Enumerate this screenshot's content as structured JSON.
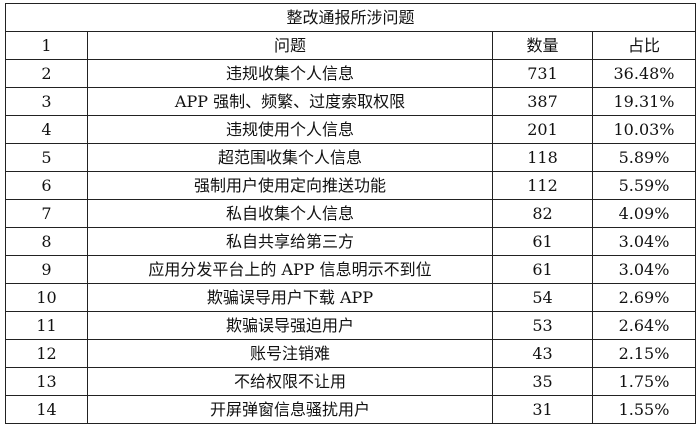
{
  "table": {
    "title": "整改通报所涉问题",
    "header": [
      "1",
      "问题",
      "数量",
      "占比"
    ],
    "rows": [
      [
        "2",
        "违规收集个人信息",
        "731",
        "36.48%"
      ],
      [
        "3",
        "APP 强制、频繁、过度索取权限",
        "387",
        "19.31%"
      ],
      [
        "4",
        "违规使用个人信息",
        "201",
        "10.03%"
      ],
      [
        "5",
        "超范围收集个人信息",
        "118",
        "5.89%"
      ],
      [
        "6",
        "强制用户使用定向推送功能",
        "112",
        "5.59%"
      ],
      [
        "7",
        "私自收集个人信息",
        "82",
        "4.09%"
      ],
      [
        "8",
        "私自共享给第三方",
        "61",
        "3.04%"
      ],
      [
        "9",
        "应用分发平台上的 APP 信息明示不到位",
        "61",
        "3.04%"
      ],
      [
        "10",
        "欺骗误导用户下载 APP",
        "54",
        "2.69%"
      ],
      [
        "11",
        "欺骗误导强迫用户",
        "53",
        "2.64%"
      ],
      [
        "12",
        "账号注销难",
        "43",
        "2.15%"
      ],
      [
        "13",
        "不给权限不让用",
        "35",
        "1.75%"
      ],
      [
        "14",
        "开屏弹窗信息骚扰用户",
        "31",
        "1.55%"
      ]
    ]
  }
}
